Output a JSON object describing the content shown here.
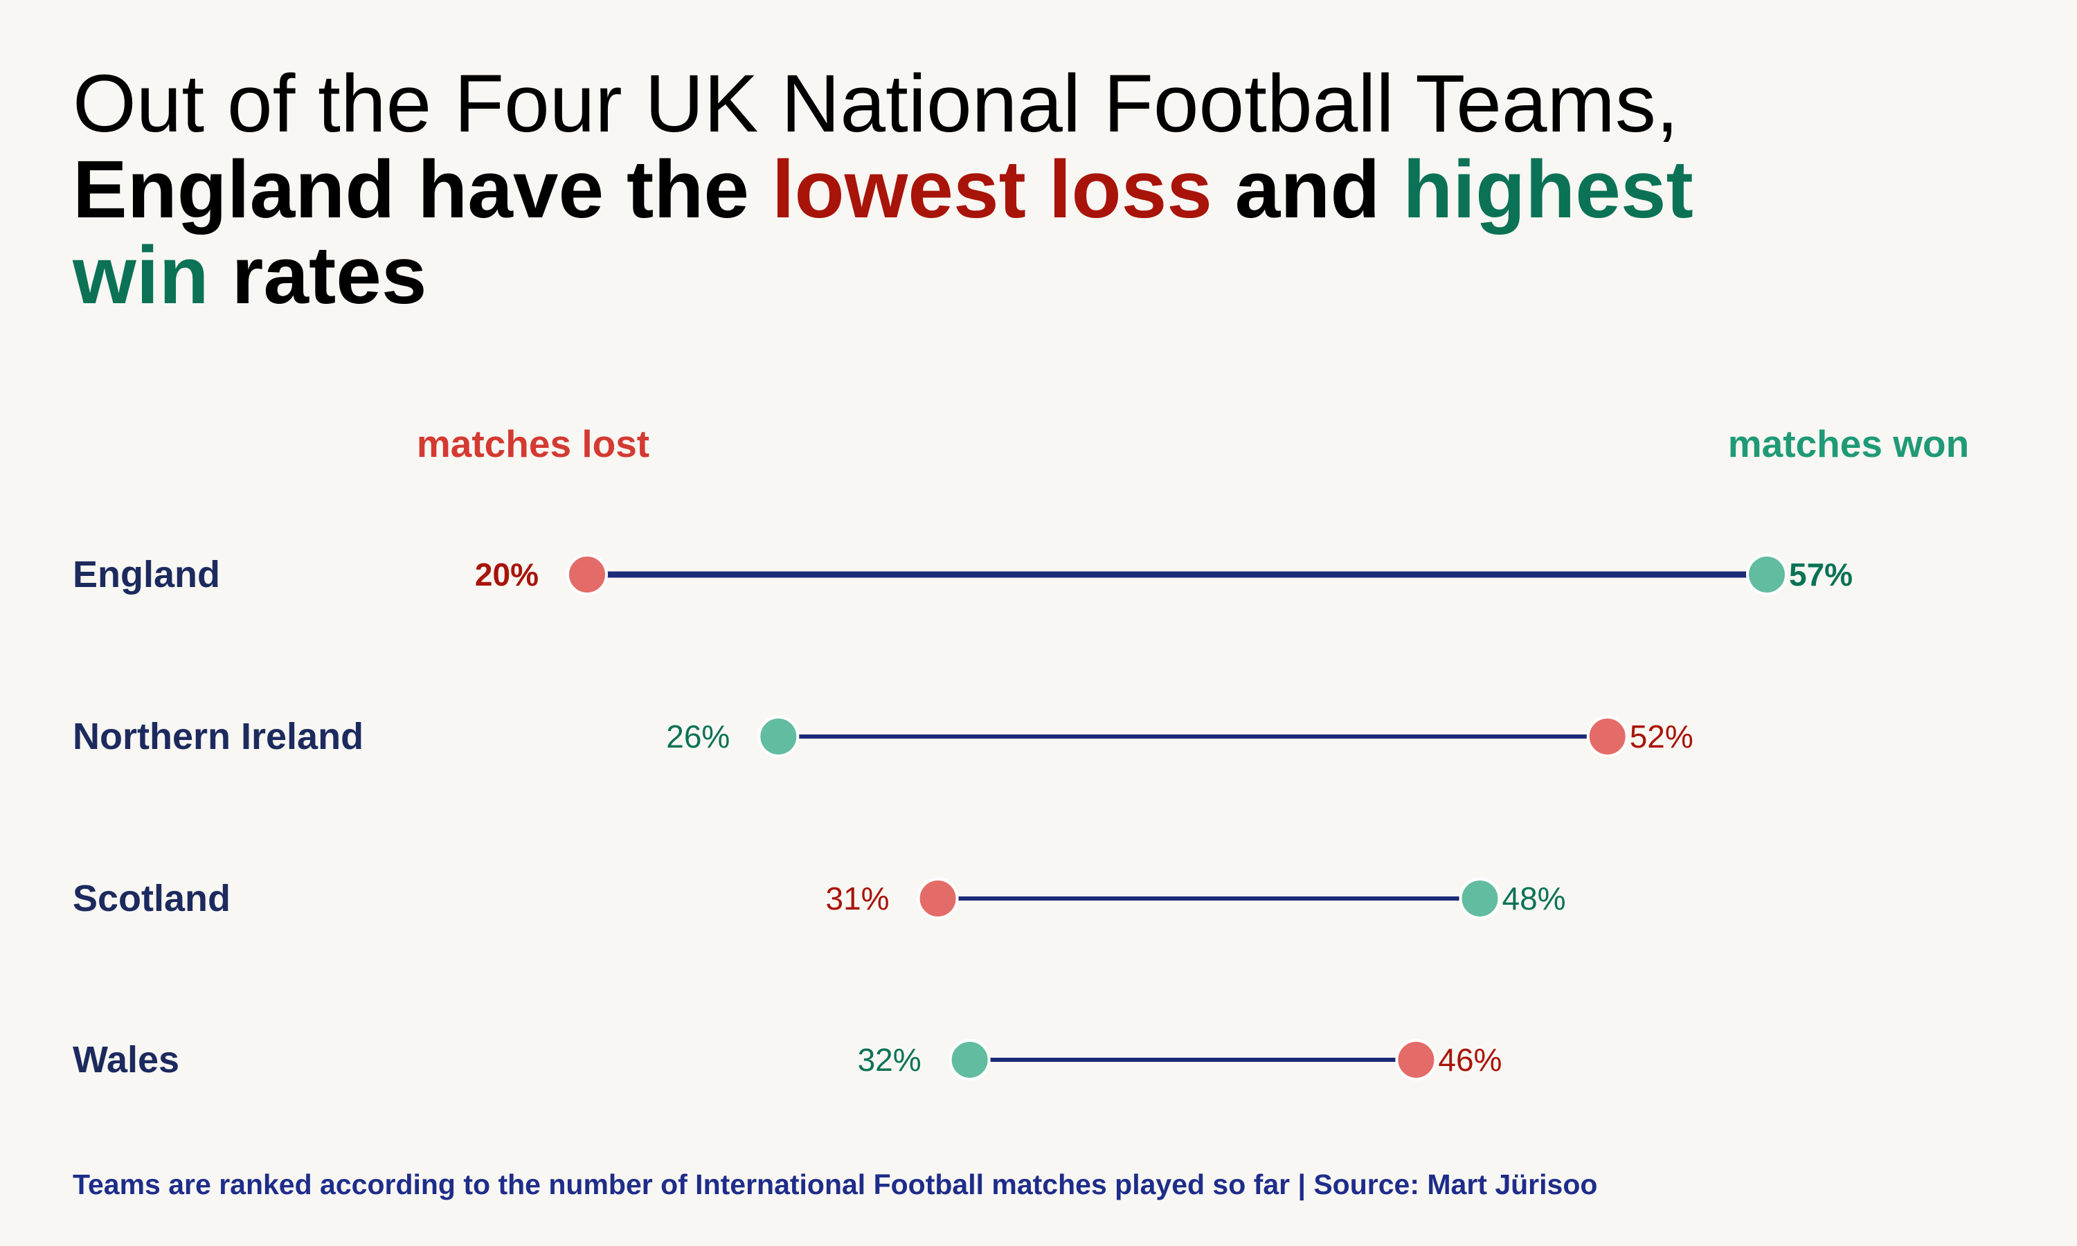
{
  "title": {
    "line1": "Out of the Four UK National Football Teams,",
    "line2_a": "England have the ",
    "line2_loss": "lowest loss",
    "line2_b": " and ",
    "line2_win1": "highest",
    "line3_win2": "win",
    "line3_b": " rates"
  },
  "footer": "Teams are ranked according to the number of International Football matches played so far | Source: Mart Jürisoo",
  "colors": {
    "lost_dot": "#e46c68",
    "won_dot": "#62bca0",
    "lost_text": "#a8140a",
    "won_text": "#0b7256",
    "header_lost": "#d33a32",
    "header_won": "#1f9a76",
    "line": "#1c2a78",
    "team_label": "#1c2a5e"
  },
  "chart_data": {
    "type": "dumbbell",
    "series_headers": {
      "lost": "matches lost",
      "won": "matches won"
    },
    "unit": "%",
    "x_range": [
      20,
      57
    ],
    "teams": [
      {
        "name": "England",
        "lost": 20,
        "won": 57,
        "highlight": true
      },
      {
        "name": "Northern Ireland",
        "lost": 52,
        "won": 26,
        "highlight": false
      },
      {
        "name": "Scotland",
        "lost": 31,
        "won": 48,
        "highlight": false
      },
      {
        "name": "Wales",
        "lost": 46,
        "won": 32,
        "highlight": false
      }
    ]
  }
}
